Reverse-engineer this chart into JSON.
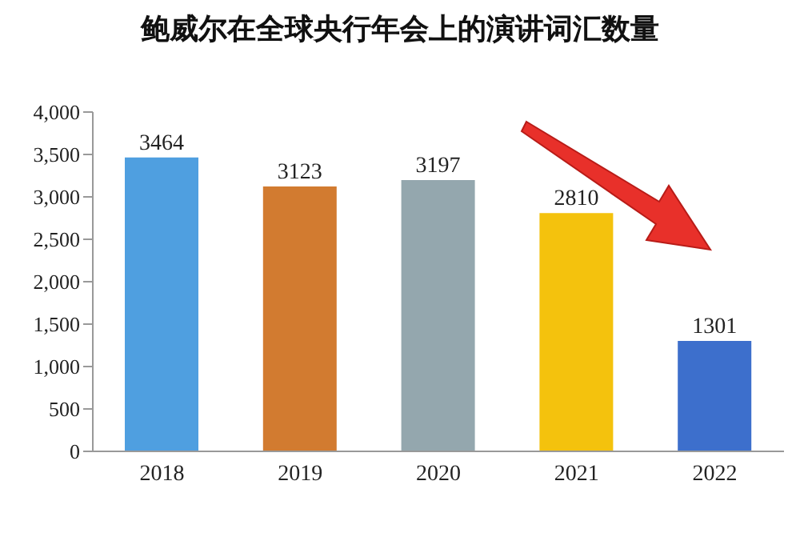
{
  "chart_data": {
    "type": "bar",
    "title": "鲍威尔在全球央行年会上的演讲词汇数量",
    "categories": [
      "2018",
      "2019",
      "2020",
      "2021",
      "2022"
    ],
    "values": [
      3464,
      3123,
      3197,
      2810,
      1301
    ],
    "colors": [
      "#4f9fe0",
      "#d27b30",
      "#94a7ae",
      "#f4c20d",
      "#3d6fcc"
    ],
    "ylim": [
      0,
      4000
    ],
    "yticks": [
      {
        "value": 0,
        "label": "0"
      },
      {
        "value": 500,
        "label": "500"
      },
      {
        "value": 1000,
        "label": "1,000"
      },
      {
        "value": 1500,
        "label": "1,500"
      },
      {
        "value": 2000,
        "label": "2,000"
      },
      {
        "value": 2500,
        "label": "2,500"
      },
      {
        "value": 3000,
        "label": "3,000"
      },
      {
        "value": 3500,
        "label": "3,500"
      },
      {
        "value": 4000,
        "label": "4,000"
      }
    ],
    "data_labels": true
  }
}
